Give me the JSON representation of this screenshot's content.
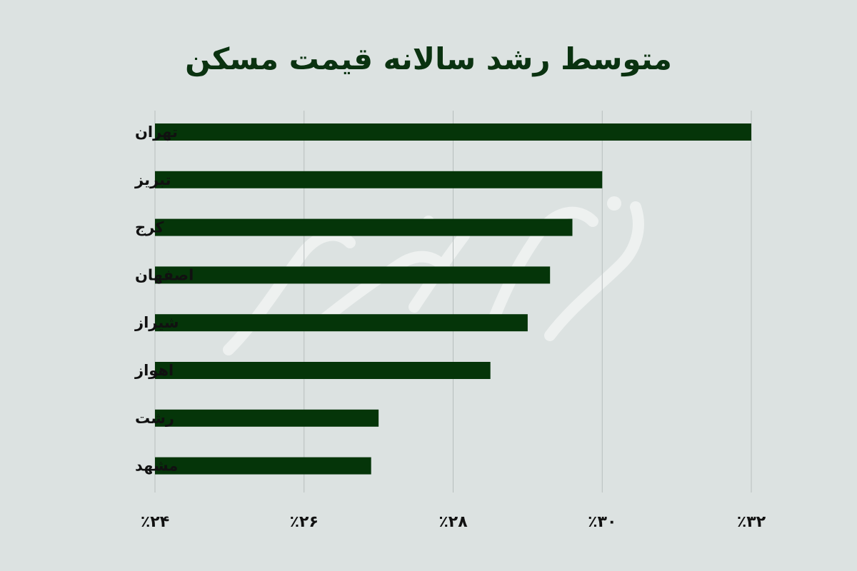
{
  "chart_data": {
    "type": "bar",
    "orientation": "horizontal",
    "title": "متوسط رشد سالانه قیمت مسکن",
    "categories": [
      "تهران",
      "تبریز",
      "کرج",
      "اصفهان",
      "شیراز",
      "اهواز",
      "رشت",
      "مشهد"
    ],
    "values": [
      32.0,
      30.0,
      29.6,
      29.3,
      29.0,
      28.5,
      27.0,
      26.9
    ],
    "xlim": [
      24,
      32
    ],
    "xticks": [
      24,
      26,
      28,
      30,
      32
    ],
    "xtick_labels": [
      "٪۲۴",
      "٪۲۶",
      "٪۲۸",
      "٪۳۰",
      "٪۳۲"
    ],
    "xlabel": "",
    "ylabel": "",
    "grid": "vertical",
    "legend": "none",
    "bar_color": "#053509",
    "grid_color": "#b7bebd",
    "background": "#dce2e1"
  },
  "watermark": {
    "text": "فردای اقتصاد",
    "color": "#eef1f0"
  }
}
